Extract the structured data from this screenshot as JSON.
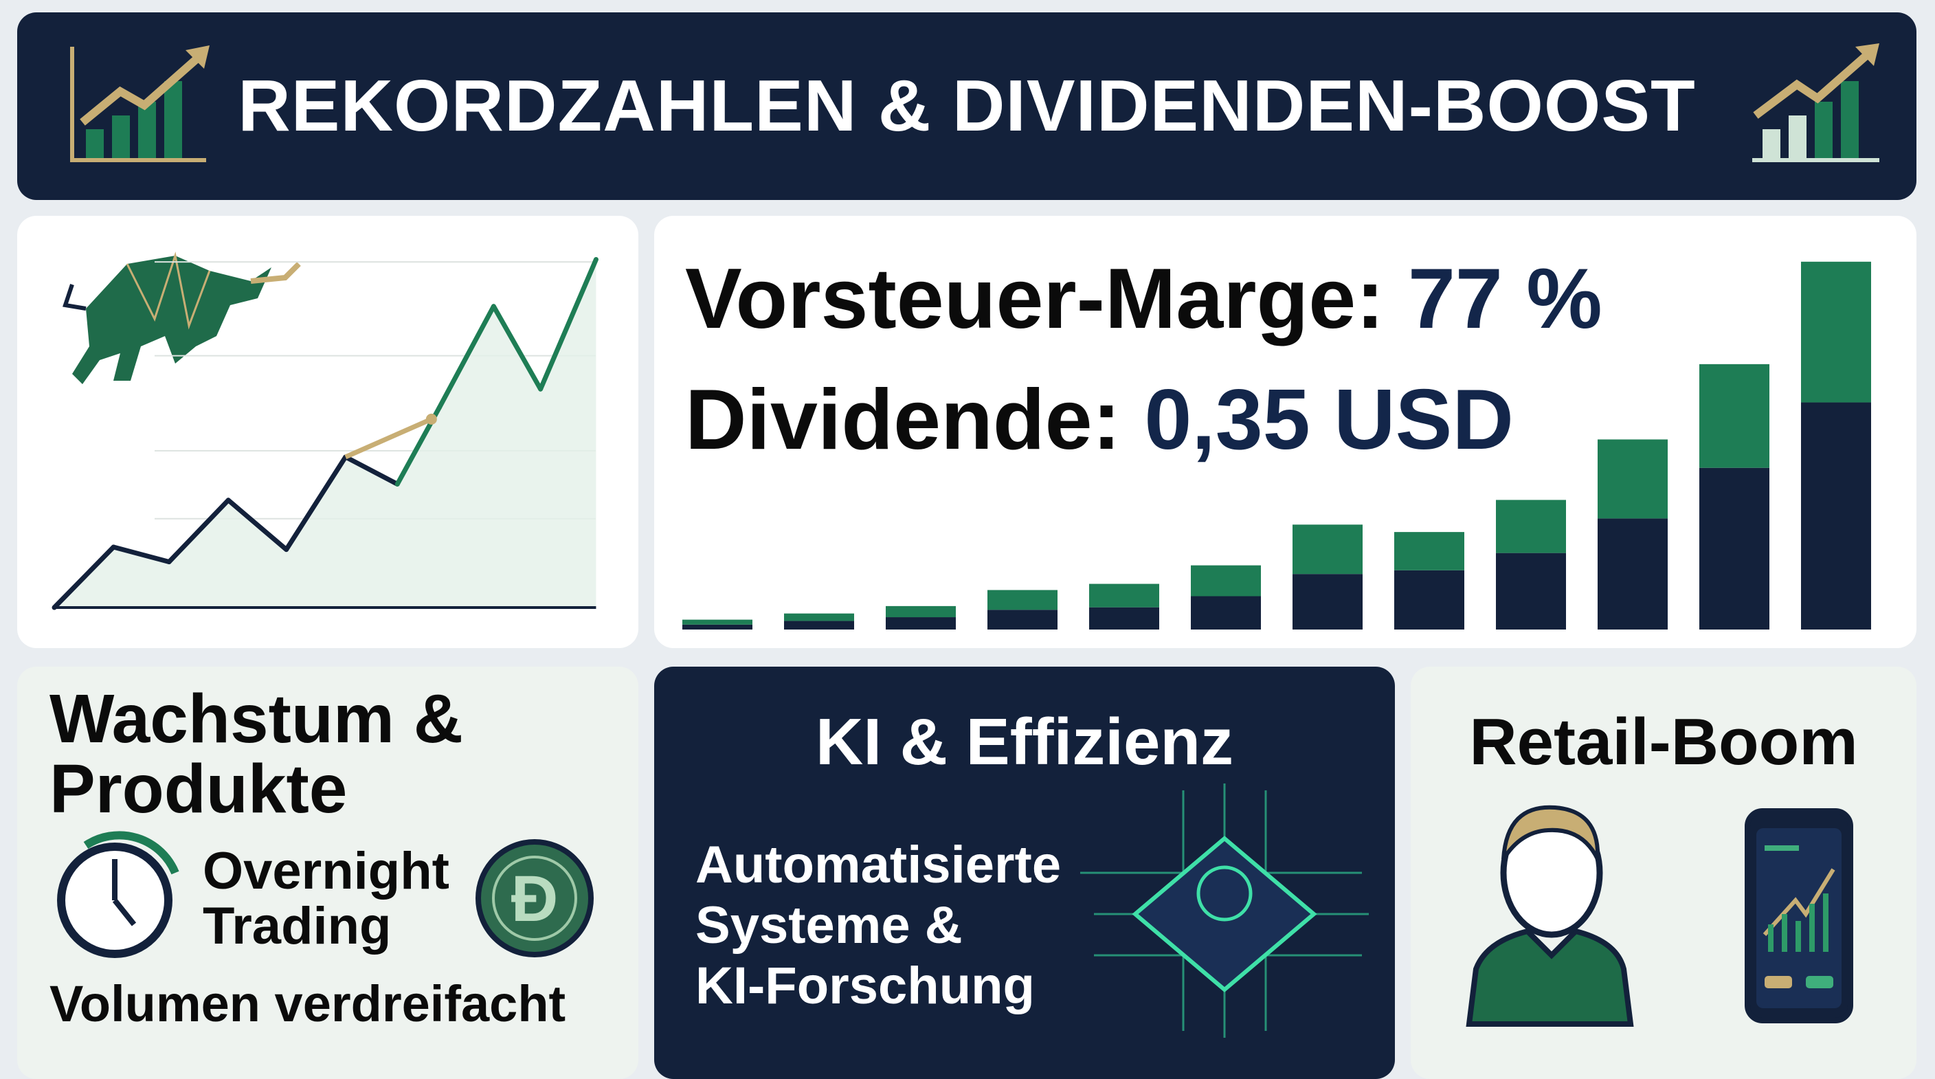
{
  "header": {
    "title": "REKORDZAHLEN & DIVIDENDEN-BOOST"
  },
  "metrics": {
    "margin_label": "Vorsteuer-Marge:",
    "margin_value": "77 %",
    "dividend_label": "Dividende:",
    "dividend_value": "0,35 USD"
  },
  "growth": {
    "title_line1": "Wachstum &",
    "title_line2": "Produkte",
    "feature_line1": "Overnight",
    "feature_line2": "Trading",
    "volume": "Volumen verdreifacht"
  },
  "ai": {
    "title": "KI & Effizienz",
    "line1": "Automatisierte",
    "line2": "Systeme &",
    "line3": "KI-Forschung"
  },
  "retail": {
    "title": "Retail-Boom"
  },
  "colors": {
    "navy": "#13213b",
    "green": "#1e7d55",
    "gold": "#c8ae74"
  },
  "chart_data": [
    {
      "type": "line",
      "title": "",
      "series": [
        {
          "name": "trend",
          "values": [
            0,
            49,
            37,
            87,
            47,
            122,
            100,
            162,
            244,
            177,
            282
          ]
        }
      ],
      "highlight_segment": [
        5,
        7
      ],
      "gridlines": [
        72,
        127,
        204,
        280
      ],
      "ylim": [
        0,
        290
      ]
    },
    {
      "type": "bar",
      "stacked": true,
      "categories": [
        "1",
        "2",
        "3",
        "4",
        "5",
        "6",
        "7",
        "8",
        "9",
        "10",
        "11",
        "12"
      ],
      "series": [
        {
          "name": "base",
          "values": [
            4,
            7,
            10,
            16,
            18,
            27,
            45,
            48,
            62,
            90,
            131,
            184
          ]
        },
        {
          "name": "top",
          "values": [
            4,
            6,
            9,
            16,
            19,
            25,
            40,
            31,
            43,
            64,
            84,
            114
          ]
        }
      ]
    }
  ]
}
